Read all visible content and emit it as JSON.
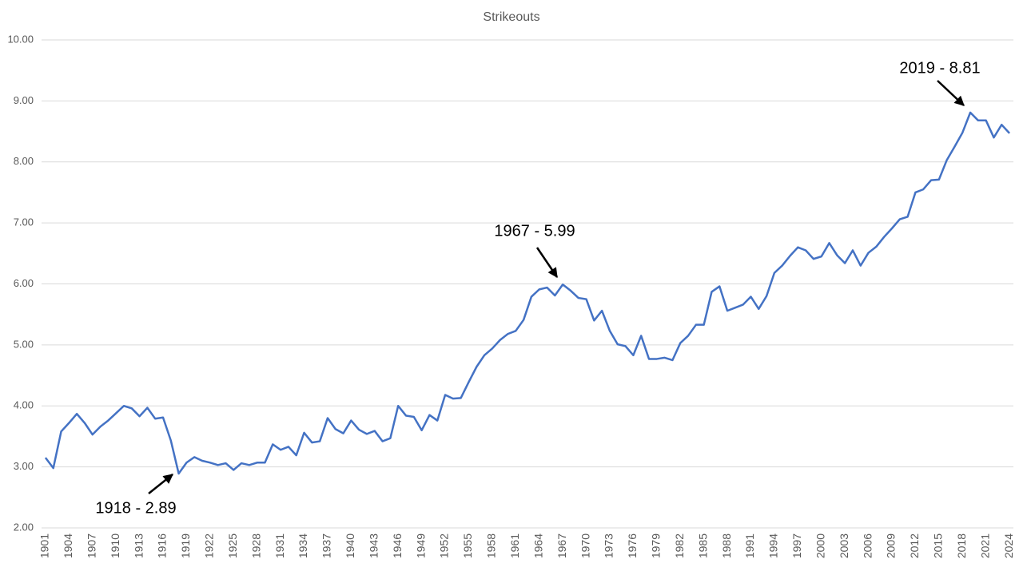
{
  "chart_data": {
    "type": "line",
    "title": "Strikeouts",
    "categories": [
      "1901",
      null,
      null,
      "1904",
      null,
      null,
      "1907",
      null,
      null,
      "1910",
      null,
      null,
      "1913",
      null,
      null,
      "1916",
      null,
      null,
      "1919",
      null,
      null,
      "1922",
      null,
      null,
      "1925",
      null,
      null,
      "1928",
      null,
      null,
      "1931",
      null,
      null,
      "1934",
      null,
      null,
      "1937",
      null,
      null,
      "1940",
      null,
      null,
      "1943",
      null,
      null,
      "1946",
      null,
      null,
      "1949",
      null,
      null,
      "1952",
      null,
      null,
      "1955",
      null,
      null,
      "1958",
      null,
      null,
      "1961",
      null,
      null,
      "1964",
      null,
      null,
      "1967",
      null,
      null,
      "1970",
      null,
      null,
      "1973",
      null,
      null,
      "1976",
      null,
      null,
      "1979",
      null,
      null,
      "1982",
      null,
      null,
      "1985",
      null,
      null,
      "1988",
      null,
      null,
      "1991",
      null,
      null,
      "1994",
      null,
      null,
      "1997",
      null,
      null,
      "2000",
      null,
      null,
      "2003",
      null,
      null,
      "2006",
      null,
      null,
      "2009",
      null,
      null,
      "2012",
      null,
      null,
      "2015",
      null,
      null,
      "2018",
      null,
      null,
      "2021",
      null,
      null,
      "2024"
    ],
    "values": [
      3.15,
      2.98,
      3.58,
      3.72,
      3.87,
      3.72,
      3.53,
      3.66,
      3.76,
      3.88,
      4.0,
      3.96,
      3.83,
      3.97,
      3.79,
      3.81,
      3.43,
      2.89,
      3.07,
      3.16,
      3.1,
      3.07,
      3.03,
      3.06,
      2.95,
      3.06,
      3.03,
      3.07,
      3.07,
      3.37,
      3.28,
      3.33,
      3.19,
      3.56,
      3.4,
      3.42,
      3.8,
      3.62,
      3.55,
      3.76,
      3.61,
      3.54,
      3.59,
      3.42,
      3.47,
      4.0,
      3.84,
      3.82,
      3.6,
      3.85,
      3.76,
      4.18,
      4.12,
      4.13,
      4.39,
      4.64,
      4.83,
      4.94,
      5.08,
      5.18,
      5.23,
      5.41,
      5.79,
      5.91,
      5.94,
      5.81,
      5.99,
      5.89,
      5.77,
      5.75,
      5.4,
      5.56,
      5.23,
      5.01,
      4.98,
      4.83,
      5.15,
      4.77,
      4.77,
      4.79,
      4.75,
      5.03,
      5.15,
      5.33,
      5.33,
      5.87,
      5.96,
      5.56,
      5.61,
      5.66,
      5.79,
      5.59,
      5.8,
      6.18,
      6.3,
      6.46,
      6.6,
      6.55,
      6.41,
      6.45,
      6.67,
      6.47,
      6.34,
      6.55,
      6.3,
      6.51,
      6.61,
      6.77,
      6.91,
      7.06,
      7.1,
      7.5,
      7.55,
      7.7,
      7.71,
      8.03,
      8.25,
      8.48,
      8.81,
      8.68,
      8.68,
      8.4,
      8.61,
      8.47
    ],
    "color": "#4472c4",
    "ylim": [
      2,
      10
    ],
    "yticks": [
      {
        "value": 2,
        "label": "2.00"
      },
      {
        "value": 3,
        "label": "3.00"
      },
      {
        "value": 4,
        "label": "4.00"
      },
      {
        "value": 5,
        "label": "5.00"
      },
      {
        "value": 6,
        "label": "6.00"
      },
      {
        "value": 7,
        "label": "7.00"
      },
      {
        "value": 8,
        "label": "8.00"
      },
      {
        "value": 9,
        "label": "9.00"
      },
      {
        "value": 10,
        "label": "10.00"
      }
    ],
    "grid": true,
    "annotations": [
      {
        "text": "1918 - 2.89"
      },
      {
        "text": "1967 - 5.99"
      },
      {
        "text": "2019 - 8.81"
      }
    ]
  }
}
